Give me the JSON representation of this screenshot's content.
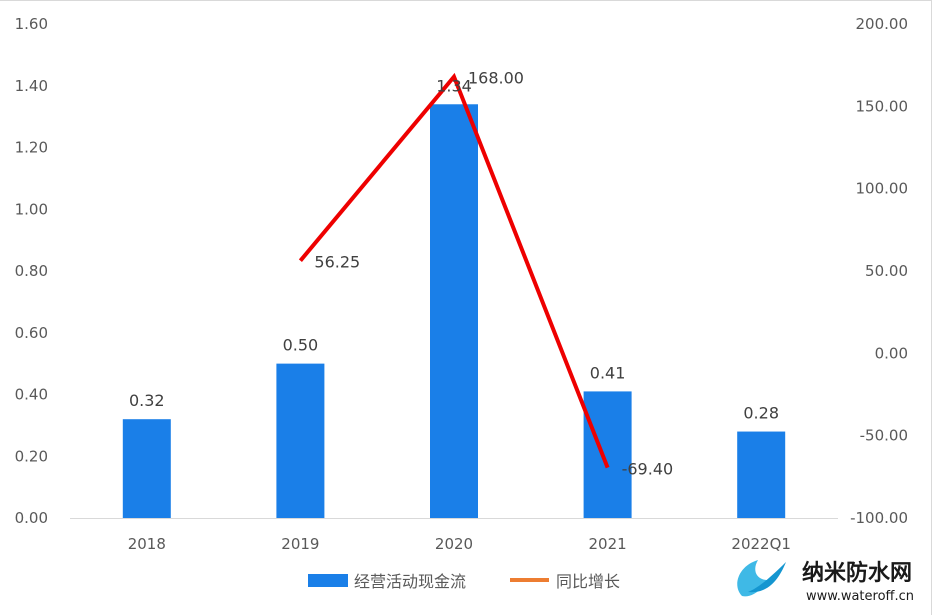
{
  "chart_data": {
    "type": "bar",
    "categories": [
      "2018",
      "2019",
      "2020",
      "2021",
      "2022Q1"
    ],
    "series": [
      {
        "name": "经营活动现金流",
        "type": "bar",
        "axis": "left",
        "values": [
          0.32,
          0.5,
          1.34,
          0.41,
          0.28
        ],
        "labels": [
          "0.32",
          "0.50",
          "1.34",
          "0.41",
          "0.28"
        ],
        "color": "#1a7fe8"
      },
      {
        "name": "同比增长",
        "type": "line",
        "axis": "right",
        "values": [
          null,
          56.25,
          168.0,
          -69.4,
          null
        ],
        "labels": [
          "",
          "56.25",
          "168.00",
          "-69.40",
          ""
        ],
        "color": "#ee0000",
        "legend_color": "#ed7d31"
      }
    ],
    "y_left": {
      "ylim": [
        0,
        1.6
      ],
      "ticks": [
        "0.00",
        "0.20",
        "0.40",
        "0.60",
        "0.80",
        "1.00",
        "1.20",
        "1.40",
        "1.60"
      ]
    },
    "y_right": {
      "ylim": [
        -100,
        200
      ],
      "ticks": [
        "-100.00",
        "-50.00",
        "0.00",
        "50.00",
        "100.00",
        "150.00",
        "200.00"
      ]
    },
    "legend_position": "bottom",
    "grid": false
  },
  "watermark": {
    "title": "纳米防水网",
    "url": "www.wateroff.cn"
  }
}
